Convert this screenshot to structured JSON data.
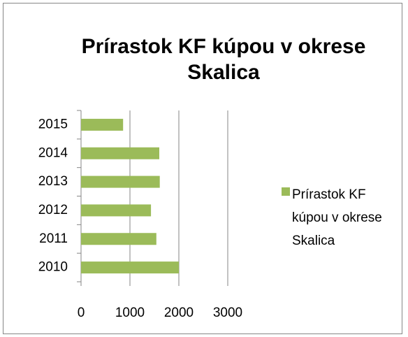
{
  "chart_data": {
    "type": "bar",
    "orientation": "horizontal",
    "title": "Prírastok KF kúpou v okrese Skalica",
    "categories": [
      "2010",
      "2011",
      "2012",
      "2013",
      "2014",
      "2015"
    ],
    "series": [
      {
        "name": "Prírastok KF kúpou v okrese Skalica",
        "color": "#9bbb59",
        "values": [
          2000,
          1540,
          1430,
          1610,
          1600,
          860
        ]
      }
    ],
    "xlim": [
      0,
      3000
    ],
    "xticks": [
      0,
      1000,
      2000,
      3000
    ],
    "grid": true,
    "legend": "right"
  }
}
